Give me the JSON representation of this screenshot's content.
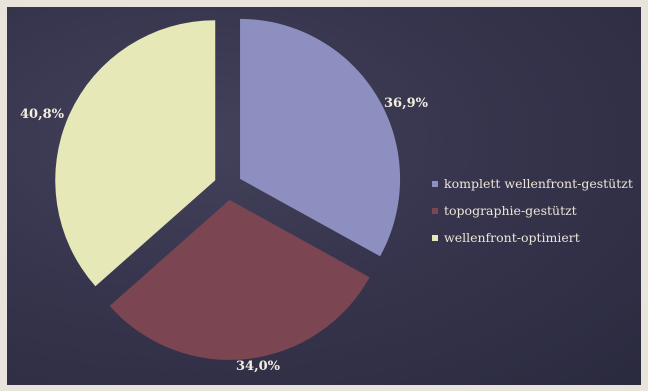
{
  "chart_data": {
    "type": "pie",
    "title": "",
    "slices": [
      {
        "label": "komplett wellenfront-gestützt",
        "value": 36.9,
        "value_label": "36,9%",
        "color": "#8d8fc0"
      },
      {
        "label": "topographie-gestützt",
        "value": 34.0,
        "value_label": "34,0%",
        "color": "#7b4652"
      },
      {
        "label": "wellenfront-optimiert",
        "value": 40.8,
        "value_label": "40,8%",
        "color": "#e7e8b8"
      }
    ],
    "exploded": true,
    "legend_position": "right",
    "background_color": "#37354d"
  }
}
